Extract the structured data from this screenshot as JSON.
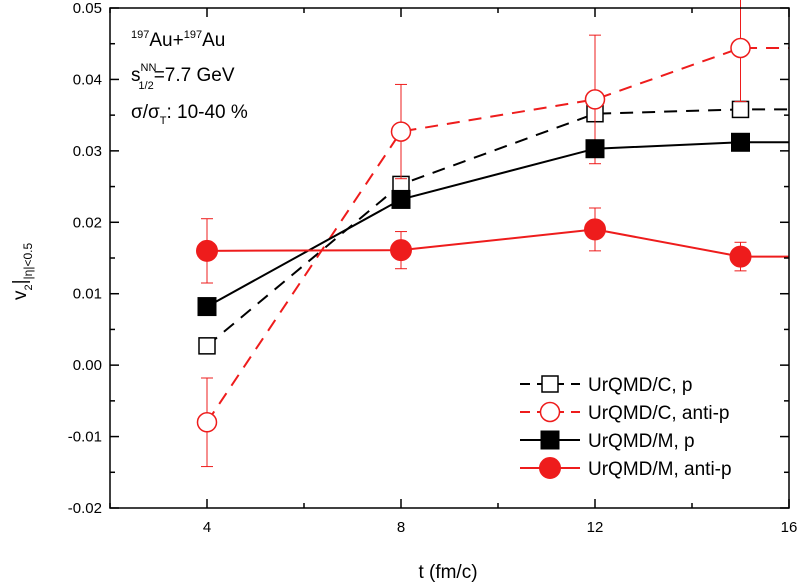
{
  "colors": {
    "black": "#000000",
    "red": "#ee1c1c"
  },
  "chart_data": {
    "type": "line",
    "title": "",
    "xlabel": "t (fm/c)",
    "ylabel": {
      "main": "v",
      "sub": "2",
      "bar": "|",
      "sub2": "|η|<0.5"
    },
    "xlim": [
      2,
      16
    ],
    "ylim": [
      -0.02,
      0.05
    ],
    "xticks": [
      4,
      8,
      12,
      16
    ],
    "xticks_labels": [
      "4",
      "8",
      "12",
      "16"
    ],
    "yticks": [
      -0.02,
      -0.01,
      0.0,
      0.01,
      0.02,
      0.03,
      0.04,
      0.05
    ],
    "yticks_labels": [
      "-0.02",
      "-0.01",
      "0.00",
      "0.01",
      "0.02",
      "0.03",
      "0.04",
      "0.05"
    ],
    "grid": false,
    "legend_position": "bottom-right",
    "annotations": {
      "system": {
        "sup1": "197",
        "t1": "Au+",
        "sup2": "197",
        "t2": "Au"
      },
      "energy": {
        "s": "s",
        "sup": "NN",
        "sub": "1/2",
        "rest": "=7.7 GeV"
      },
      "centrality": {
        "s1": "σ/σ",
        "sub": "T",
        "rest": ": 10-40 %"
      }
    },
    "series": [
      {
        "name": "UrQMD/C, p",
        "color": "#000000",
        "linestyle": "dashed",
        "marker": "open-square",
        "x": [
          4,
          8,
          12,
          15
        ],
        "y": [
          0.0027,
          0.0253,
          0.0352,
          0.0358
        ],
        "err": [
          0.0007,
          0.0007,
          0.0007,
          0.0007
        ],
        "extend_to": 16,
        "extend_y": 0.0358
      },
      {
        "name": "UrQMD/C, anti-p",
        "color": "#ee1c1c",
        "linestyle": "dashed",
        "marker": "open-circle",
        "x": [
          4,
          8,
          12,
          15
        ],
        "y": [
          -0.008,
          0.0327,
          0.0372,
          0.0444
        ],
        "err": [
          0.0062,
          0.0066,
          0.009,
          0.0075
        ],
        "extend_to": 16,
        "extend_y": 0.0444
      },
      {
        "name": "UrQMD/M, p",
        "color": "#000000",
        "linestyle": "solid",
        "marker": "filled-square",
        "x": [
          4,
          8,
          12,
          15
        ],
        "y": [
          0.0082,
          0.0232,
          0.0303,
          0.0312
        ],
        "err": [
          0.0004,
          0.0004,
          0.0004,
          0.0004
        ],
        "extend_to": 16,
        "extend_y": 0.0312
      },
      {
        "name": "UrQMD/M, anti-p",
        "color": "#ee1c1c",
        "linestyle": "solid",
        "marker": "filled-circle",
        "x": [
          4,
          8,
          12,
          15
        ],
        "y": [
          0.016,
          0.0161,
          0.019,
          0.0152
        ],
        "err": [
          0.0045,
          0.0026,
          0.003,
          0.002
        ],
        "extend_to": 16,
        "extend_y": 0.0152
      }
    ]
  }
}
